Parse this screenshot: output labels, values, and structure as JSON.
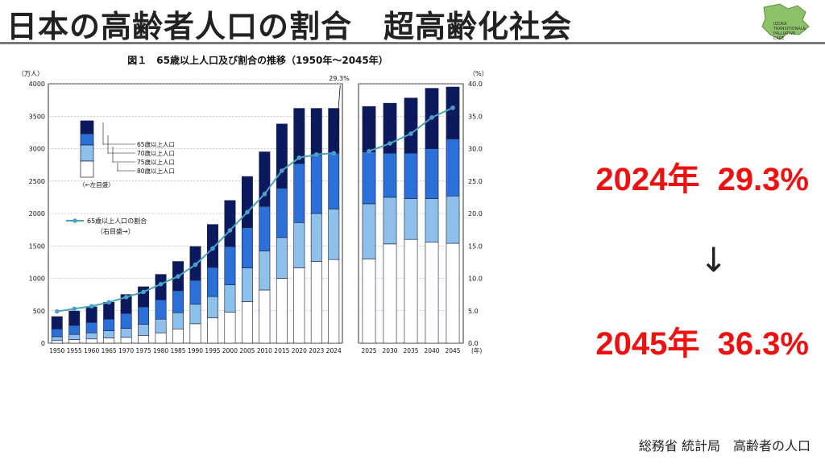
{
  "slide": {
    "title": "日本の高齢者人口の割合　超高齢化社会",
    "logo_text": [
      "IIZUKA",
      "TRANSITIONAL&",
      "PALLIATIVE",
      "CARE"
    ],
    "stat_2024": "2024年  29.3%",
    "arrow": "↓",
    "stat_2045": "2045年  36.3%",
    "source": "総務省 統計局　高齢者の人口",
    "colors": {
      "title": "#222222",
      "accent": "#ee1111",
      "rule": "#7a7a7a",
      "logo_green": "#8fc06a"
    }
  },
  "chart_data": {
    "type": "bar",
    "title": "図１　65歳以上人口及び割合の推移（1950年～2045年）",
    "left_axis_unit": "（万人）",
    "right_axis_unit": "（%）",
    "x_axis_unit": "(年)",
    "ylim": [
      0,
      4000
    ],
    "y_ticks": [
      0,
      500,
      1000,
      1500,
      2000,
      2500,
      3000,
      3500,
      4000
    ],
    "y2lim": [
      0,
      40
    ],
    "y2_ticks": [
      "0.0",
      "5.0",
      "10.0",
      "15.0",
      "20.0",
      "25.0",
      "30.0",
      "35.0",
      "40.0"
    ],
    "categories": [
      "1950",
      "1955",
      "1960",
      "1965",
      "1970",
      "1975",
      "1980",
      "1985",
      "1990",
      "1995",
      "2000",
      "2005",
      "2010",
      "2015",
      "2020",
      "2023",
      "2024",
      "2025",
      "2030",
      "2035",
      "2040",
      "2045"
    ],
    "panel_split_after": "2024",
    "series": [
      {
        "name": "80歳以上人口",
        "color": "#ffffff",
        "values": [
          40,
          55,
          65,
          80,
          90,
          120,
          160,
          220,
          300,
          390,
          480,
          640,
          820,
          1000,
          1160,
          1260,
          1290,
          1300,
          1530,
          1600,
          1560,
          1540
        ]
      },
      {
        "name": "75歳以上人口",
        "color": "#8dc0ea",
        "values": [
          60,
          80,
          95,
          110,
          140,
          170,
          210,
          250,
          300,
          330,
          420,
          520,
          600,
          630,
          700,
          740,
          780,
          850,
          720,
          630,
          670,
          730
        ]
      },
      {
        "name": "70歳以上人口",
        "color": "#2b6fd8",
        "values": [
          120,
          140,
          160,
          180,
          230,
          270,
          300,
          340,
          370,
          450,
          590,
          620,
          690,
          760,
          910,
          900,
          860,
          800,
          680,
          700,
          770,
          880
        ]
      },
      {
        "name": "65歳以上人口",
        "color": "#0b1a5e",
        "values": [
          190,
          220,
          240,
          260,
          290,
          310,
          390,
          450,
          520,
          660,
          710,
          790,
          840,
          990,
          850,
          720,
          690,
          700,
          770,
          850,
          930,
          800
        ]
      }
    ],
    "line": {
      "name": "65歳以上人口の割合",
      "axis_hint": "（右目盛→）",
      "color": "#4aa3c4",
      "values": [
        4.9,
        5.3,
        5.7,
        6.3,
        7.1,
        7.9,
        9.1,
        10.3,
        12.1,
        14.6,
        17.4,
        20.2,
        23.0,
        26.6,
        28.6,
        29.1,
        29.3,
        29.6,
        30.8,
        32.3,
        34.8,
        36.3
      ]
    },
    "legend_left_axis_hint": "（←左目盛）",
    "annotation": "29.3%",
    "grid": true
  }
}
